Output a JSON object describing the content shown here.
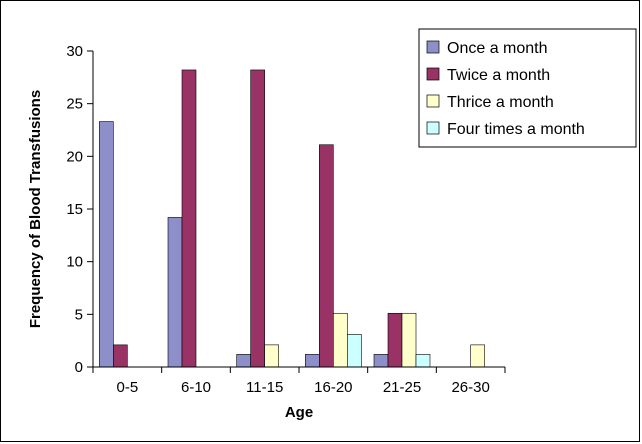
{
  "chart_data": {
    "type": "bar",
    "title": "",
    "xlabel": "Age",
    "ylabel": "Frequency of Blood Transfusions",
    "categories": [
      "0-5",
      "6-10",
      "11-15",
      "16-20",
      "21-25",
      "26-30"
    ],
    "ylim": [
      0,
      30
    ],
    "yticks": [
      0,
      5,
      10,
      15,
      20,
      25,
      30
    ],
    "grid": false,
    "legend_position": "top-right",
    "series": [
      {
        "name": "Once a month",
        "color": "#8c8fc8",
        "values": [
          23.3,
          14.2,
          1.2,
          1.2,
          1.2,
          0
        ]
      },
      {
        "name": "Twice a month",
        "color": "#993366",
        "values": [
          2.1,
          28.2,
          28.2,
          21.1,
          5.1,
          0
        ]
      },
      {
        "name": "Thrice a month",
        "color": "#ffffcc",
        "values": [
          0,
          0,
          2.1,
          5.1,
          5.1,
          2.1
        ]
      },
      {
        "name": "Four times a month",
        "color": "#ccffff",
        "values": [
          0,
          0,
          0,
          3.1,
          1.2,
          0
        ]
      }
    ]
  }
}
